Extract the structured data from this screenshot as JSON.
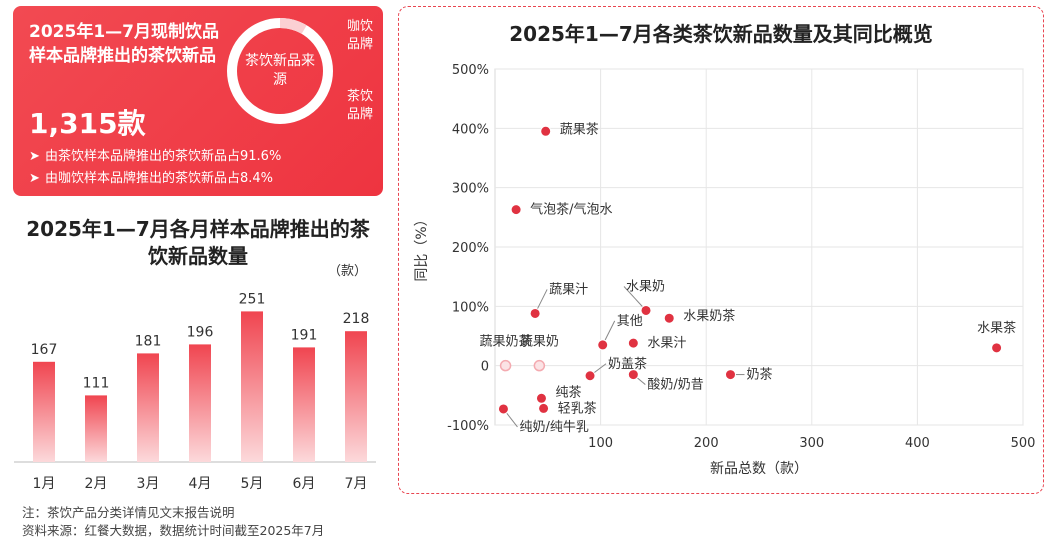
{
  "summary": {
    "title": "2025年1—7月现制饮品样本品牌推出的茶饮新品",
    "count": "1,315款",
    "donut_center": "茶饮新品来源",
    "donut_label_coffee": "咖饮品牌",
    "donut_label_tea": "茶饮品牌",
    "bullet_arrow": "➤",
    "bullets": [
      "由茶饮样本品牌推出的茶饮新品占91.6%",
      "由咖饮样本品牌推出的茶饮新品占8.4%"
    ]
  },
  "notes": {
    "line1": "注：茶饮产品分类详情见文末报告说明",
    "line2": "资料来源：红餐大数据，数据统计时间截至2025年7月"
  },
  "colors": {
    "accent": "#e8404a",
    "bar_top": "#f04550",
    "bar_bottom": "#fcd9db",
    "point": "#e03241",
    "point_light": "#f4aab0"
  },
  "chart_data": [
    {
      "type": "bar",
      "title": "2025年1—7月各月样本品牌推出的茶饮新品数量",
      "unit": "（款）",
      "categories": [
        "1月",
        "2月",
        "3月",
        "4月",
        "5月",
        "6月",
        "7月"
      ],
      "values": [
        167,
        111,
        181,
        196,
        251,
        191,
        218
      ],
      "ylim": [
        0,
        280
      ]
    },
    {
      "type": "scatter",
      "title": "2025年1—7月各类茶饮新品数量及其同比概览",
      "xlabel": "新品总数（款）",
      "ylabel": "同比（%）",
      "xlim": [
        0,
        500
      ],
      "ylim": [
        -100,
        500
      ],
      "xticks": [
        100,
        200,
        300,
        400,
        500
      ],
      "yticks": [
        "500%",
        "400%",
        "300%",
        "200%",
        "100%",
        "0",
        "-100%"
      ],
      "ytick_values": [
        500,
        400,
        300,
        200,
        100,
        0,
        -100
      ],
      "points": [
        {
          "name": "蔬果茶",
          "x": 48,
          "y": 395
        },
        {
          "name": "气泡茶/气泡水",
          "x": 20,
          "y": 263
        },
        {
          "name": "蔬果汁",
          "x": 38,
          "y": 88
        },
        {
          "name": "水果奶",
          "x": 143,
          "y": 93
        },
        {
          "name": "水果奶茶",
          "x": 165,
          "y": 80
        },
        {
          "name": "其他",
          "x": 102,
          "y": 35
        },
        {
          "name": "水果汁",
          "x": 131,
          "y": 38
        },
        {
          "name": "蔬果奶茶",
          "x": 10,
          "y": 0
        },
        {
          "name": "蔬果奶",
          "x": 42,
          "y": 0
        },
        {
          "name": "奶盖茶",
          "x": 90,
          "y": -17
        },
        {
          "name": "酸奶/奶昔",
          "x": 131,
          "y": -15
        },
        {
          "name": "奶茶",
          "x": 223,
          "y": -15
        },
        {
          "name": "纯茶",
          "x": 44,
          "y": -55
        },
        {
          "name": "轻乳茶",
          "x": 46,
          "y": -72
        },
        {
          "name": "纯奶/纯牛乳",
          "x": 8,
          "y": -73
        },
        {
          "name": "水果茶",
          "x": 475,
          "y": 30
        }
      ]
    }
  ]
}
